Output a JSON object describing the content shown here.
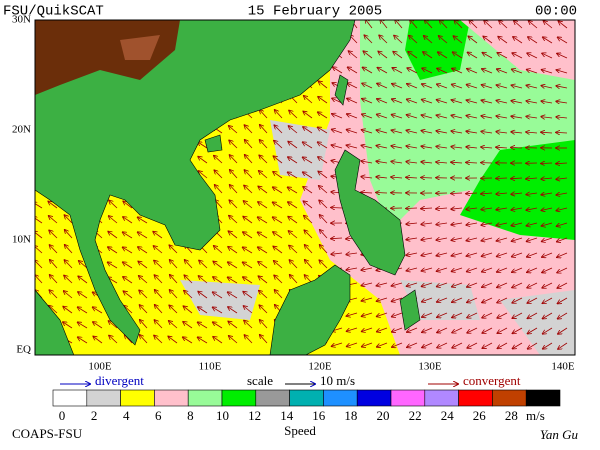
{
  "header": {
    "source": "FSU/QuikSCAT",
    "date": "15 February 2005",
    "time": "00:00"
  },
  "map": {
    "lat_labels": [
      "30N",
      "20N",
      "10N",
      "EQ"
    ],
    "lon_labels": [
      "100E",
      "110E",
      "120E",
      "130E",
      "140E"
    ]
  },
  "legend": {
    "divergent": "divergent",
    "scale": "scale",
    "scale_value": "10 m/s",
    "convergent": "convergent"
  },
  "colorbar": {
    "colors": [
      "#ffffff",
      "#d3d3d3",
      "#ffff00",
      "#ffc0cb",
      "#98fb98",
      "#00ee00",
      "#999999",
      "#00b0b0",
      "#1e90ff",
      "#0000e0",
      "#ff66ff",
      "#b088ff",
      "#ff0000",
      "#c04000",
      "#000000"
    ],
    "ticks": [
      0,
      2,
      4,
      6,
      8,
      10,
      12,
      14,
      16,
      18,
      20,
      22,
      24,
      26,
      28
    ],
    "unit": "m/s",
    "label": "Speed"
  },
  "footer": {
    "credit": "COAPS-FSU",
    "author": "Yan Gu"
  }
}
